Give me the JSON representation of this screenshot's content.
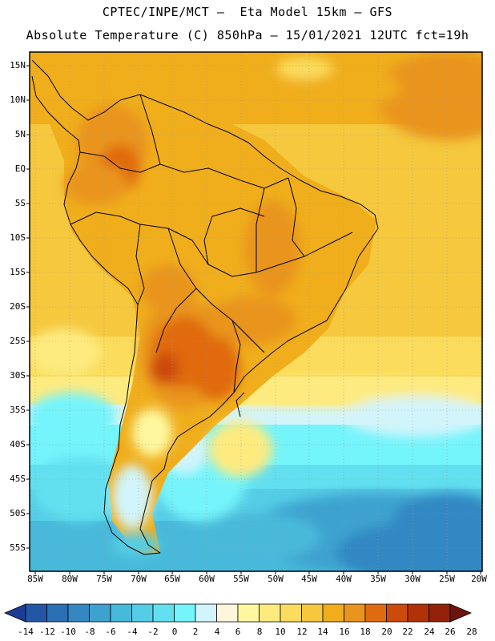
{
  "header": {
    "title_line1": "CPTEC/INPE/MCT –  Eta Model 15km – GFS",
    "title_line2": "Absolute Temperature (C) 850hPa – 15/01/2021 12UTC fct=19h"
  },
  "map": {
    "lat_labels": [
      "15N",
      "10N",
      "5N",
      "EQ",
      "5S",
      "10S",
      "15S",
      "20S",
      "25S",
      "30S",
      "35S",
      "40S",
      "45S",
      "50S",
      "55S"
    ],
    "lon_labels": [
      "85W",
      "80W",
      "75W",
      "70W",
      "65W",
      "60W",
      "55W",
      "50W",
      "45W",
      "40W",
      "35W",
      "30W",
      "25W",
      "20W"
    ]
  },
  "colorbar": {
    "labels": [
      "-14",
      "-12",
      "-10",
      "-8",
      "-6",
      "-4",
      "-2",
      "0",
      "2",
      "4",
      "6",
      "8",
      "10",
      "12",
      "14",
      "16",
      "18",
      "20",
      "22",
      "24",
      "26",
      "28"
    ],
    "colors": [
      "#1e3c96",
      "#2456a6",
      "#2b6fb5",
      "#3388c2",
      "#3da2cf",
      "#48b9da",
      "#55cde6",
      "#62e0f0",
      "#74f4fb",
      "#d2f4fb",
      "#fdf6dc",
      "#fdf8a0",
      "#fdeb80",
      "#fbdc5c",
      "#f5c83e",
      "#f0ae1c",
      "#e9941e",
      "#e06a10",
      "#cc4a0c",
      "#b23208",
      "#932208",
      "#6e1410"
    ]
  }
}
